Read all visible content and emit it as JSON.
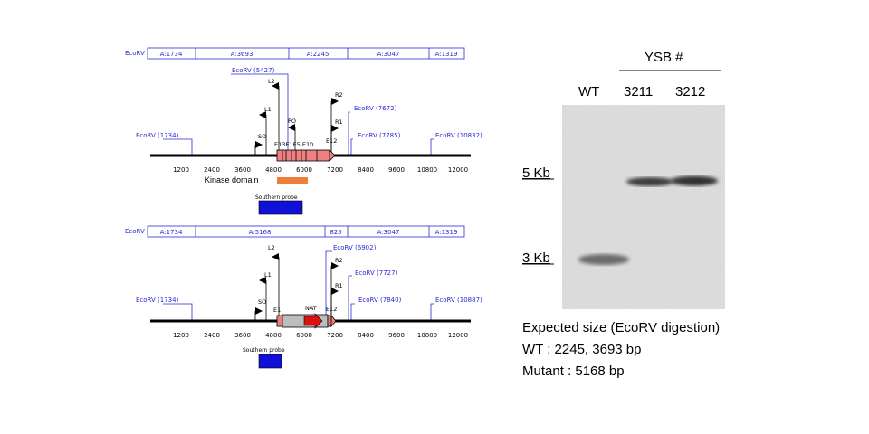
{
  "maps": [
    {
      "name": "wt",
      "fragments": [
        "A:1734",
        "A:3693",
        "A:2245",
        "A:3047",
        "A:1319"
      ],
      "fragment_header_label": "EcoRV",
      "ecorv_sites": [
        "EcoRV (1734)",
        "EcoRV (5427)",
        "EcoRV (7672)",
        "EcoRV (7785)",
        "EcoRV (10832)"
      ],
      "primers": [
        "L2",
        "L1",
        "SO",
        "PO",
        "R2",
        "R1",
        "E12"
      ],
      "exons_label": "E13E1E5 E10",
      "ticks": [
        "1200",
        "2400",
        "3600",
        "4800",
        "6000",
        "7200",
        "8400",
        "9600",
        "10800",
        "12000"
      ],
      "kinase_label": "Kinase domain",
      "probe_label": "Southern probe"
    },
    {
      "name": "mutant",
      "fragments": [
        "A:1734",
        "A:5168",
        "825",
        "A:3047",
        "A:1319"
      ],
      "fragment_header_label": "EcoRV",
      "ecorv_sites": [
        "EcoRV (1734)",
        "EcoRV (6902)",
        "EcoRV (7727)",
        "EcoRV (7840)",
        "EcoRV (10887)"
      ],
      "primers": [
        "L2",
        "L1",
        "SO",
        "R2",
        "R1",
        "E12"
      ],
      "exons_label": "E1",
      "nat_label": "NAT",
      "ticks": [
        "1200",
        "2400",
        "3600",
        "4800",
        "6000",
        "7200",
        "8400",
        "9600",
        "10800",
        "12000"
      ],
      "probe_label": "Southern probe"
    }
  ],
  "blot": {
    "group_label": "YSB #",
    "lanes": [
      "WT",
      "3211",
      "3212"
    ],
    "size_markers": [
      "5 Kb",
      "3 Kb"
    ],
    "expected_lines": [
      "Expected size (EcoRV digestion)",
      "WT : 2245, 3693 bp",
      "Mutant : 5168 bp"
    ]
  },
  "colors": {
    "site_blue": "#2a2ad4",
    "exon_pink": "#f08080",
    "kinase_orange": "#ec7f3a",
    "probe_blue": "#1010d8",
    "nat_red": "#e01010",
    "cassette_gray": "#bdbdbd"
  }
}
